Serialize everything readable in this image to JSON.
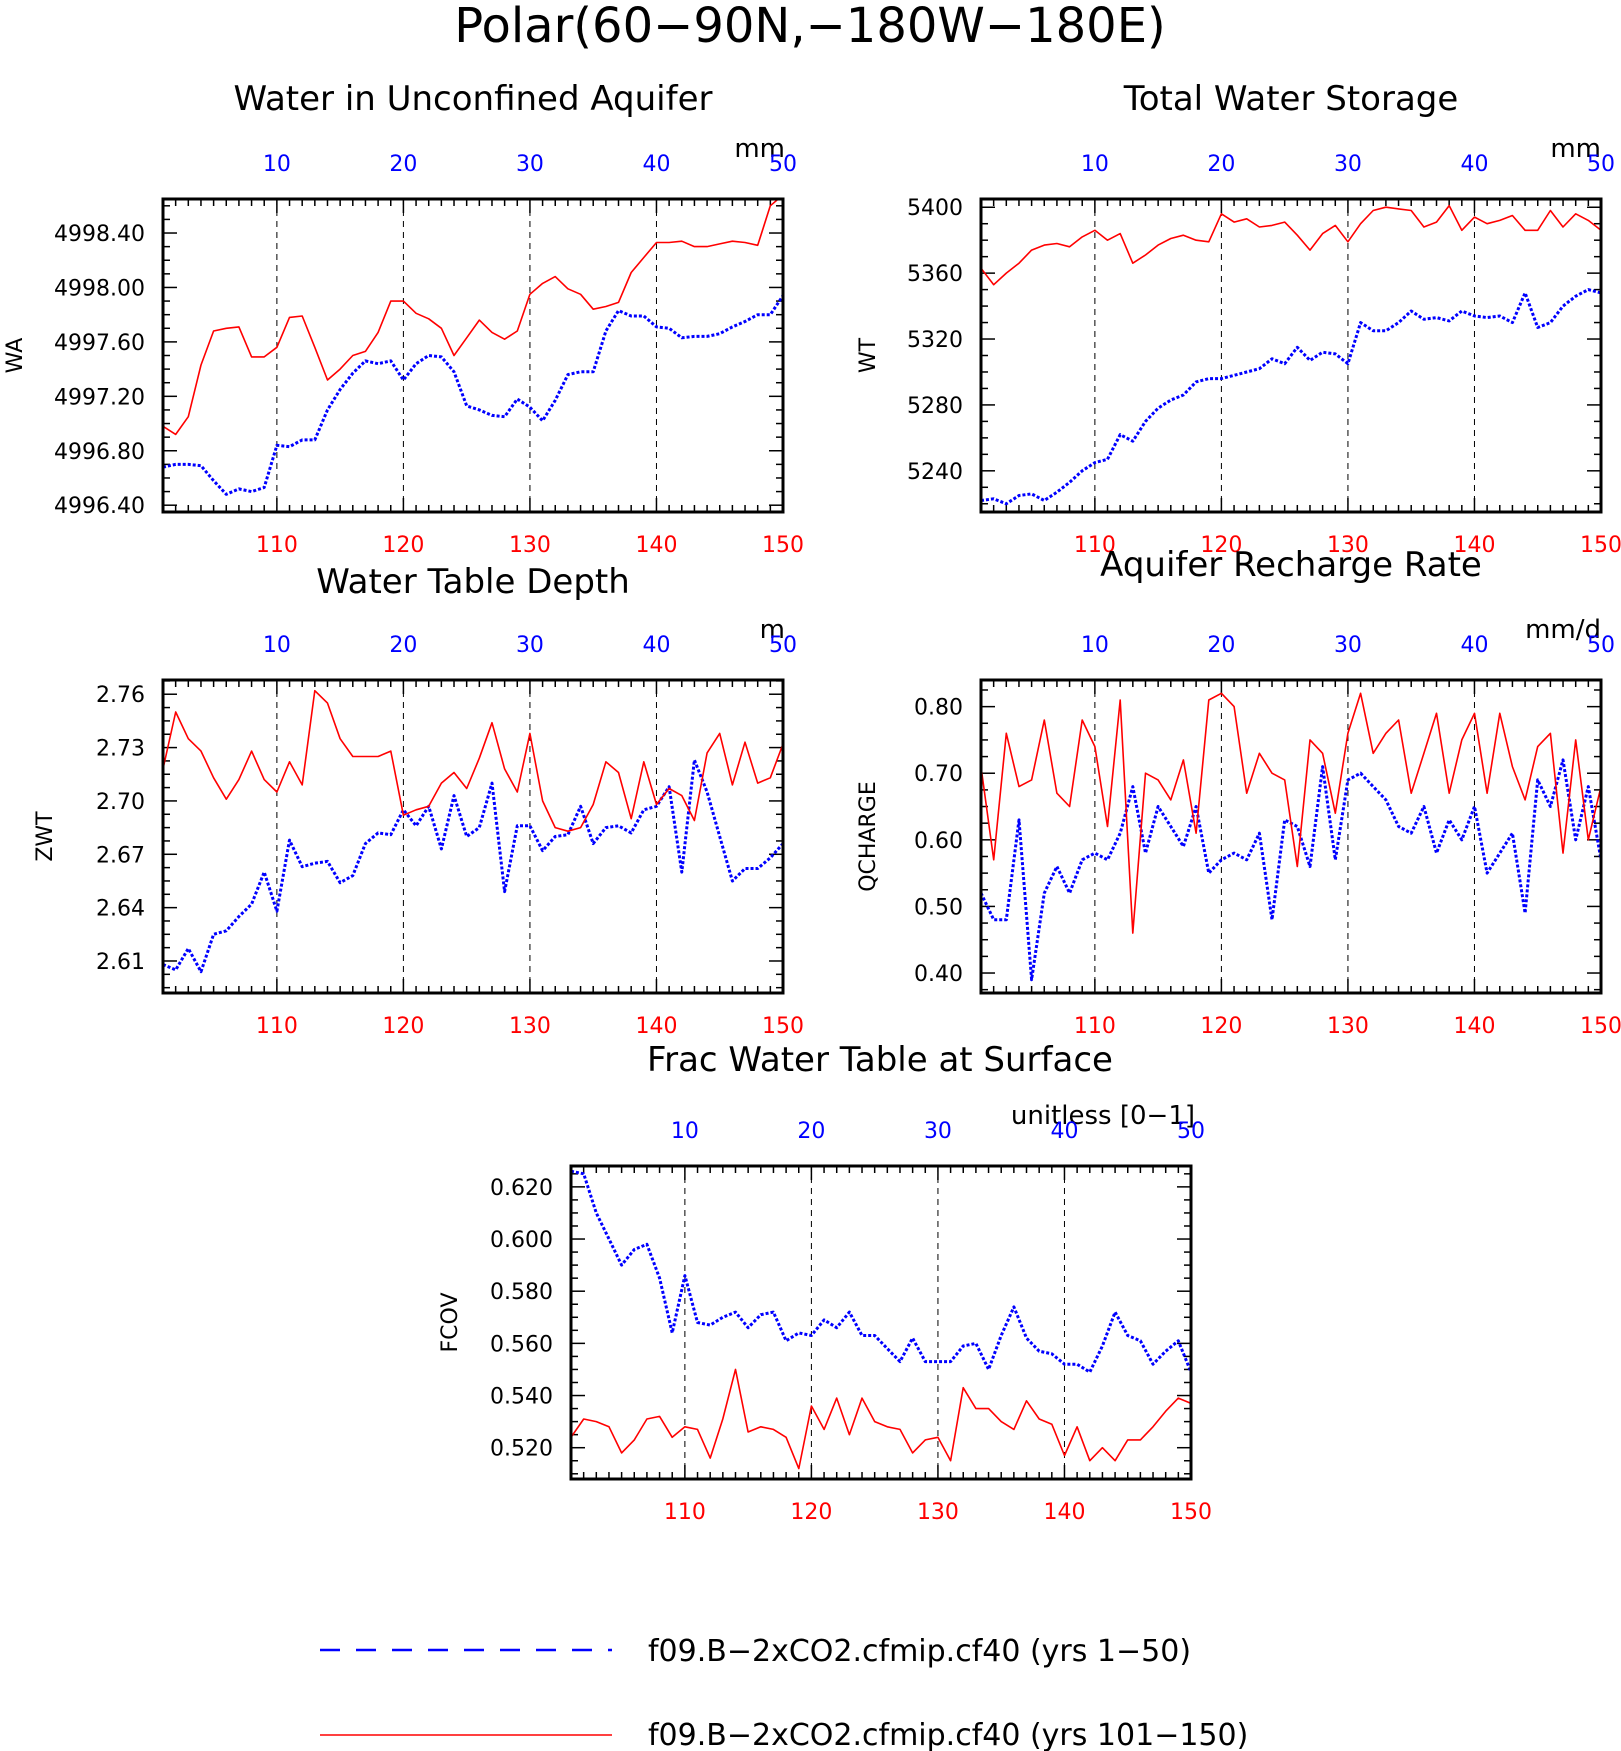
{
  "figure": {
    "title": "Polar(60−90N,−180W−180E)",
    "bottom_axis_color": "#ff0000",
    "top_axis_color": "#0000ff"
  },
  "legend": {
    "entries": [
      {
        "label": "f09.B−2xCO2.cfmip.cf40 (yrs 1−50)",
        "color": "#0000ff",
        "style": "dashed"
      },
      {
        "label": "f09.B−2xCO2.cfmip.cf40 (yrs 101−150)",
        "color": "#ff0000",
        "style": "solid"
      }
    ]
  },
  "chart_data": [
    {
      "type": "line",
      "title": "Water in Unconfined Aquifer",
      "units": "mm",
      "ylabel": "WA",
      "x_bottom": {
        "range": [
          101,
          150
        ],
        "ticks": [
          "110",
          "120",
          "130",
          "140",
          "150"
        ]
      },
      "x_top": {
        "range": [
          1,
          50
        ],
        "ticks": [
          "10",
          "20",
          "30",
          "40",
          "50"
        ]
      },
      "ylim": [
        4996.35,
        4998.65
      ],
      "yticks": [
        "4996.40",
        "4996.80",
        "4997.20",
        "4997.60",
        "4998.00",
        "4998.40"
      ],
      "grid": "vertical dashed at 10, 20, 30, 40",
      "series": [
        {
          "name": "f09.B−2xCO2.cfmip.cf40 (yrs 1−50)",
          "color": "#0000ff",
          "style": "dashed",
          "values": [
            4996.68,
            4996.7,
            4996.7,
            4996.69,
            4996.58,
            4996.48,
            4996.52,
            4996.5,
            4996.53,
            4996.84,
            4996.83,
            4996.88,
            4996.88,
            4997.1,
            4997.25,
            4997.37,
            4997.46,
            4997.44,
            4997.46,
            4997.32,
            4997.44,
            4997.5,
            4997.49,
            4997.38,
            4997.13,
            4997.1,
            4997.06,
            4997.05,
            4997.18,
            4997.12,
            4997.02,
            4997.17,
            4997.36,
            4997.38,
            4997.38,
            4997.68,
            4997.83,
            4997.79,
            4997.79,
            4997.71,
            4997.7,
            4997.63,
            4997.64,
            4997.64,
            4997.66,
            4997.71,
            4997.75,
            4997.8,
            4997.8,
            4997.94
          ]
        },
        {
          "name": "f09.B−2xCO2.cfmip.cf40 (yrs 101−150)",
          "color": "#ff0000",
          "style": "solid",
          "values": [
            4996.98,
            4996.92,
            4997.05,
            4997.43,
            4997.68,
            4997.7,
            4997.71,
            4997.49,
            4997.49,
            4997.56,
            4997.78,
            4997.79,
            4997.56,
            4997.32,
            4997.4,
            4997.5,
            4997.53,
            4997.67,
            4997.9,
            4997.9,
            4997.81,
            4997.77,
            4997.7,
            4997.5,
            4997.63,
            4997.76,
            4997.67,
            4997.62,
            4997.68,
            4997.95,
            4998.03,
            4998.08,
            4997.99,
            4997.95,
            4997.84,
            4997.86,
            4997.89,
            4998.11,
            4998.22,
            4998.33,
            4998.33,
            4998.34,
            4998.3,
            4998.3,
            4998.32,
            4998.34,
            4998.33,
            4998.31,
            4998.6,
            4998.68
          ]
        }
      ]
    },
    {
      "type": "line",
      "title": "Total Water Storage",
      "units": "mm",
      "ylabel": "WT",
      "x_bottom": {
        "range": [
          101,
          150
        ],
        "ticks": [
          "110",
          "120",
          "130",
          "140",
          "150"
        ]
      },
      "x_top": {
        "range": [
          1,
          50
        ],
        "ticks": [
          "10",
          "20",
          "30",
          "40",
          "50"
        ]
      },
      "ylim": [
        5215,
        5405
      ],
      "yticks": [
        "5240",
        "5280",
        "5320",
        "5360",
        "5400"
      ],
      "grid": "vertical dashed at 10, 20, 30, 40",
      "series": [
        {
          "name": "f09.B−2xCO2.cfmip.cf40 (yrs 1−50)",
          "color": "#0000ff",
          "style": "dashed",
          "values": [
            5222,
            5223,
            5220,
            5225,
            5226,
            5222,
            5227,
            5233,
            5240,
            5245,
            5247,
            5262,
            5258,
            5270,
            5278,
            5283,
            5286,
            5294,
            5296,
            5296,
            5298,
            5300,
            5302,
            5308,
            5305,
            5315,
            5307,
            5312,
            5311,
            5305,
            5330,
            5325,
            5325,
            5330,
            5337,
            5332,
            5333,
            5331,
            5337,
            5334,
            5333,
            5334,
            5330,
            5348,
            5327,
            5330,
            5340,
            5346,
            5350,
            5348
          ]
        },
        {
          "name": "f09.B−2xCO2.cfmip.cf40 (yrs 101−150)",
          "color": "#ff0000",
          "style": "solid",
          "values": [
            5363,
            5353,
            5360,
            5366,
            5374,
            5377,
            5378,
            5376,
            5382,
            5386,
            5380,
            5384,
            5366,
            5371,
            5377,
            5381,
            5383,
            5380,
            5379,
            5396,
            5391,
            5393,
            5388,
            5389,
            5391,
            5383,
            5374,
            5384,
            5389,
            5379,
            5390,
            5398,
            5400,
            5399,
            5398,
            5388,
            5391,
            5401,
            5386,
            5394,
            5390,
            5392,
            5395,
            5386,
            5386,
            5398,
            5388,
            5396,
            5392,
            5386
          ]
        }
      ]
    },
    {
      "type": "line",
      "title": "Water Table Depth",
      "units": "m",
      "ylabel": "ZWT",
      "x_bottom": {
        "range": [
          101,
          150
        ],
        "ticks": [
          "110",
          "120",
          "130",
          "140",
          "150"
        ]
      },
      "x_top": {
        "range": [
          1,
          50
        ],
        "ticks": [
          "10",
          "20",
          "30",
          "40",
          "50"
        ]
      },
      "ylim": [
        2.592,
        2.768
      ],
      "yticks": [
        "2.61",
        "2.64",
        "2.67",
        "2.70",
        "2.73",
        "2.76"
      ],
      "grid": "vertical dashed at 10, 20, 30, 40",
      "series": [
        {
          "name": "f09.B−2xCO2.cfmip.cf40 (yrs 1−50)",
          "color": "#0000ff",
          "style": "dashed",
          "values": [
            2.608,
            2.605,
            2.617,
            2.604,
            2.625,
            2.627,
            2.635,
            2.642,
            2.66,
            2.638,
            2.678,
            2.663,
            2.665,
            2.666,
            2.654,
            2.658,
            2.676,
            2.682,
            2.681,
            2.695,
            2.686,
            2.697,
            2.673,
            2.703,
            2.68,
            2.685,
            2.71,
            2.649,
            2.686,
            2.686,
            2.672,
            2.68,
            2.681,
            2.697,
            2.676,
            2.685,
            2.686,
            2.682,
            2.695,
            2.697,
            2.708,
            2.66,
            2.723,
            2.705,
            2.68,
            2.655,
            2.662,
            2.662,
            2.668,
            2.676
          ]
        },
        {
          "name": "f09.B−2xCO2.cfmip.cf40 (yrs 101−150)",
          "color": "#ff0000",
          "style": "solid",
          "values": [
            2.718,
            2.75,
            2.735,
            2.728,
            2.713,
            2.701,
            2.712,
            2.728,
            2.712,
            2.705,
            2.722,
            2.709,
            2.762,
            2.755,
            2.735,
            2.725,
            2.725,
            2.725,
            2.728,
            2.692,
            2.695,
            2.697,
            2.71,
            2.716,
            2.707,
            2.724,
            2.744,
            2.718,
            2.705,
            2.738,
            2.7,
            2.685,
            2.683,
            2.685,
            2.698,
            2.722,
            2.716,
            2.69,
            2.722,
            2.698,
            2.707,
            2.703,
            2.689,
            2.727,
            2.738,
            2.709,
            2.733,
            2.71,
            2.713,
            2.732
          ]
        }
      ]
    },
    {
      "type": "line",
      "title": "Aquifer Recharge Rate",
      "units": "mm/d",
      "ylabel": "QCHARGE",
      "x_bottom": {
        "range": [
          101,
          150
        ],
        "ticks": [
          "110",
          "120",
          "130",
          "140",
          "150"
        ]
      },
      "x_top": {
        "range": [
          1,
          50
        ],
        "ticks": [
          "10",
          "20",
          "30",
          "40",
          "50"
        ]
      },
      "ylim": [
        0.37,
        0.84
      ],
      "yticks": [
        "0.40",
        "0.50",
        "0.60",
        "0.70",
        "0.80"
      ],
      "grid": "vertical dashed at 10, 20, 30, 40",
      "series": [
        {
          "name": "f09.B−2xCO2.cfmip.cf40 (yrs 1−50)",
          "color": "#0000ff",
          "style": "dashed",
          "values": [
            0.52,
            0.48,
            0.48,
            0.63,
            0.39,
            0.52,
            0.56,
            0.52,
            0.57,
            0.58,
            0.57,
            0.61,
            0.68,
            0.58,
            0.65,
            0.62,
            0.59,
            0.65,
            0.55,
            0.57,
            0.58,
            0.57,
            0.61,
            0.48,
            0.63,
            0.62,
            0.56,
            0.71,
            0.57,
            0.69,
            0.7,
            0.68,
            0.66,
            0.62,
            0.61,
            0.65,
            0.58,
            0.63,
            0.6,
            0.65,
            0.55,
            0.58,
            0.61,
            0.49,
            0.69,
            0.65,
            0.72,
            0.6,
            0.68,
            0.57
          ]
        },
        {
          "name": "f09.B−2xCO2.cfmip.cf40 (yrs 101−150)",
          "color": "#ff0000",
          "style": "solid",
          "values": [
            0.71,
            0.57,
            0.76,
            0.68,
            0.69,
            0.78,
            0.67,
            0.65,
            0.78,
            0.74,
            0.62,
            0.81,
            0.46,
            0.7,
            0.69,
            0.66,
            0.72,
            0.61,
            0.81,
            0.82,
            0.8,
            0.67,
            0.73,
            0.7,
            0.69,
            0.56,
            0.75,
            0.73,
            0.64,
            0.76,
            0.82,
            0.73,
            0.76,
            0.78,
            0.67,
            0.73,
            0.79,
            0.67,
            0.75,
            0.79,
            0.67,
            0.79,
            0.71,
            0.66,
            0.74,
            0.76,
            0.58,
            0.75,
            0.6,
            0.68
          ]
        }
      ]
    },
    {
      "type": "line",
      "title": "Frac Water Table at Surface",
      "units": "unitless [0−1]",
      "ylabel": "FCOV",
      "x_bottom": {
        "range": [
          101,
          150
        ],
        "ticks": [
          "110",
          "120",
          "130",
          "140",
          "150"
        ]
      },
      "x_top": {
        "range": [
          1,
          50
        ],
        "ticks": [
          "10",
          "20",
          "30",
          "40",
          "50"
        ]
      },
      "ylim": [
        0.508,
        0.628
      ],
      "yticks": [
        "0.520",
        "0.540",
        "0.560",
        "0.580",
        "0.600",
        "0.620"
      ],
      "grid": "vertical dashed at 10, 20, 30, 40",
      "series": [
        {
          "name": "f09.B−2xCO2.cfmip.cf40 (yrs 1−50)",
          "color": "#0000ff",
          "style": "dashed",
          "values": [
            0.626,
            0.625,
            0.61,
            0.6,
            0.59,
            0.596,
            0.598,
            0.585,
            0.564,
            0.586,
            0.568,
            0.567,
            0.57,
            0.572,
            0.566,
            0.571,
            0.572,
            0.561,
            0.564,
            0.563,
            0.569,
            0.566,
            0.572,
            0.563,
            0.563,
            0.558,
            0.553,
            0.562,
            0.553,
            0.553,
            0.553,
            0.559,
            0.56,
            0.55,
            0.563,
            0.574,
            0.562,
            0.557,
            0.556,
            0.552,
            0.552,
            0.549,
            0.559,
            0.572,
            0.563,
            0.561,
            0.552,
            0.557,
            0.561,
            0.549
          ]
        },
        {
          "name": "f09.B−2xCO2.cfmip.cf40 (yrs 101−150)",
          "color": "#ff0000",
          "style": "solid",
          "values": [
            0.524,
            0.531,
            0.53,
            0.528,
            0.518,
            0.523,
            0.531,
            0.532,
            0.524,
            0.528,
            0.527,
            0.516,
            0.531,
            0.55,
            0.526,
            0.528,
            0.527,
            0.524,
            0.512,
            0.536,
            0.527,
            0.539,
            0.525,
            0.539,
            0.53,
            0.528,
            0.527,
            0.518,
            0.523,
            0.524,
            0.515,
            0.543,
            0.535,
            0.535,
            0.53,
            0.527,
            0.538,
            0.531,
            0.529,
            0.517,
            0.528,
            0.515,
            0.52,
            0.515,
            0.523,
            0.523,
            0.528,
            0.534,
            0.539,
            0.537
          ]
        }
      ]
    }
  ]
}
